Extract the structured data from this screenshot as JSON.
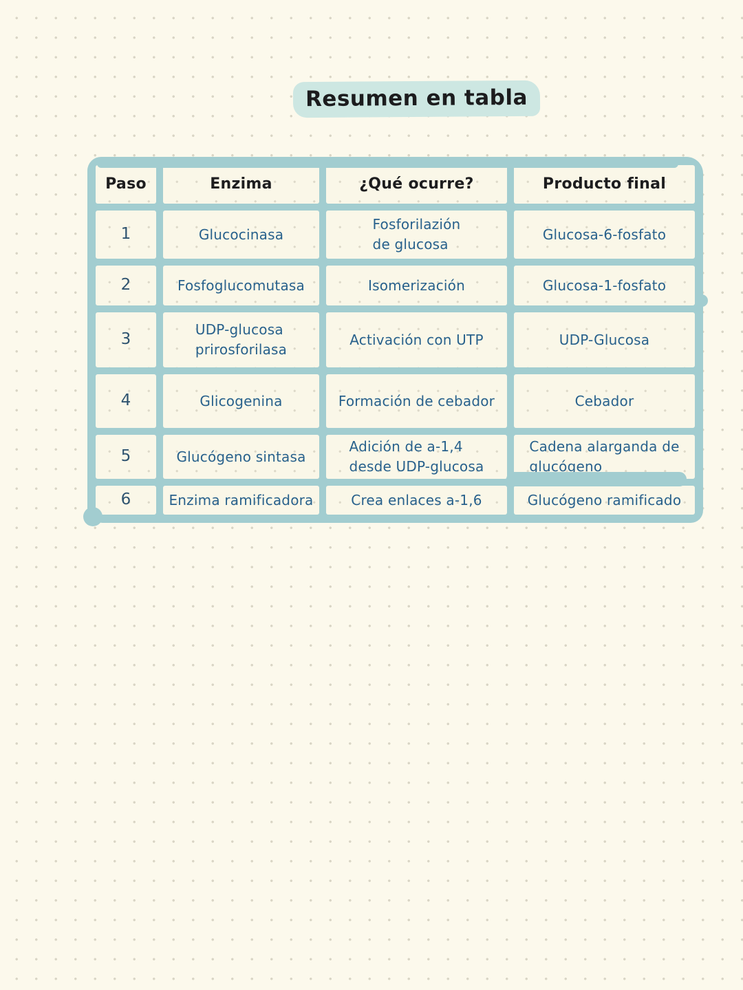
{
  "page": {
    "title": "Resumen en tabla"
  },
  "colors": {
    "paper_background": "#fcf9ec",
    "dot_grid": "#d9d5c5",
    "table_border_teal": "#a2cdd0",
    "cell_background": "#faf7e8",
    "title_highlight": "#cde7e2",
    "header_text": "#1d1d1f",
    "body_text": "#28618c"
  },
  "table": {
    "headers": [
      "Paso",
      "Enzima",
      "¿Qué ocurre?",
      "Producto final"
    ],
    "rows": [
      {
        "paso": "1",
        "enzima": "Glucocinasa",
        "ocurre": "Fosforilazión\nde glucosa",
        "producto": "Glucosa-6-fosfato"
      },
      {
        "paso": "2",
        "enzima": "Fosfoglucomutasa",
        "ocurre": "Isomerización",
        "producto": "Glucosa-1-fosfato"
      },
      {
        "paso": "3",
        "enzima": "UDP-glucosa\nprirosforilasa",
        "ocurre": "Activación con UTP",
        "producto": "UDP-Glucosa"
      },
      {
        "paso": "4",
        "enzima": "Glicogenina",
        "ocurre": "Formación de cebador",
        "producto": "Cebador"
      },
      {
        "paso": "5",
        "enzima": "Glucógeno sintasa",
        "ocurre": "Adición de a-1,4\ndesde UDP-glucosa",
        "producto": "Cadena alarganda de\nglucógeno"
      },
      {
        "paso": "6",
        "enzima": "Enzima ramificadora",
        "ocurre": "Crea enlaces a-1,6",
        "producto": "Glucógeno ramificado"
      }
    ]
  }
}
